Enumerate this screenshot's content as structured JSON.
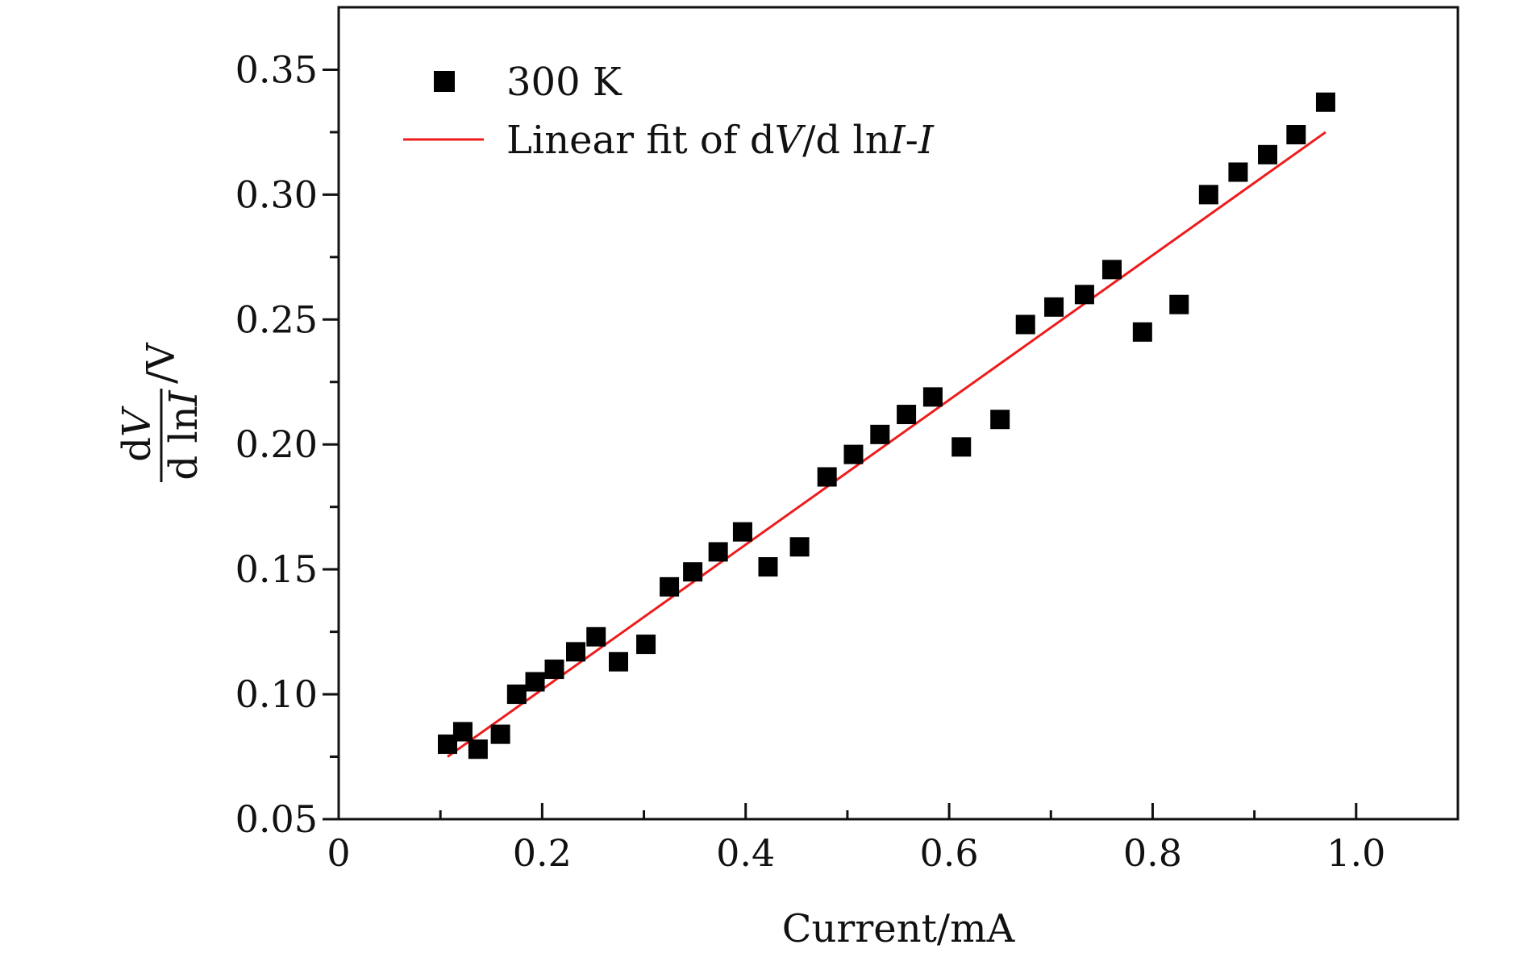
{
  "chart_data": {
    "type": "scatter",
    "xlabel": "Current/mA",
    "ylabel": {
      "numerator_prefix": "d",
      "numerator_var": "V",
      "denominator_prefix": "d ln",
      "denominator_var": "I",
      "unit": "/V"
    },
    "xlim": [
      0,
      1.1
    ],
    "ylim": [
      0.05,
      0.375
    ],
    "x_ticks": [
      0,
      0.2,
      0.4,
      0.6,
      0.8,
      1.0
    ],
    "x_tick_labels": [
      "0",
      "0.2",
      "0.4",
      "0.6",
      "0.8",
      "1.0"
    ],
    "x_minor_ticks": [
      0.1,
      0.3,
      0.5,
      0.7,
      0.9
    ],
    "y_ticks": [
      0.05,
      0.1,
      0.15,
      0.2,
      0.25,
      0.3,
      0.35
    ],
    "y_tick_labels": [
      "0.05",
      "0.10",
      "0.15",
      "0.20",
      "0.25",
      "0.30",
      "0.35"
    ],
    "y_minor_ticks": [
      0.075,
      0.125,
      0.175,
      0.225,
      0.275,
      0.325
    ],
    "legend_position": "top-left",
    "series": [
      {
        "name": "300 K",
        "kind": "scatter",
        "marker": "square",
        "color": "#000000",
        "points": [
          [
            0.107,
            0.08
          ],
          [
            0.122,
            0.085
          ],
          [
            0.137,
            0.078
          ],
          [
            0.159,
            0.084
          ],
          [
            0.175,
            0.1
          ],
          [
            0.193,
            0.105
          ],
          [
            0.212,
            0.11
          ],
          [
            0.233,
            0.117
          ],
          [
            0.253,
            0.123
          ],
          [
            0.275,
            0.113
          ],
          [
            0.302,
            0.12
          ],
          [
            0.325,
            0.143
          ],
          [
            0.348,
            0.149
          ],
          [
            0.373,
            0.157
          ],
          [
            0.397,
            0.165
          ],
          [
            0.422,
            0.151
          ],
          [
            0.453,
            0.159
          ],
          [
            0.48,
            0.187
          ],
          [
            0.506,
            0.196
          ],
          [
            0.532,
            0.204
          ],
          [
            0.558,
            0.212
          ],
          [
            0.584,
            0.219
          ],
          [
            0.612,
            0.199
          ],
          [
            0.65,
            0.21
          ],
          [
            0.675,
            0.248
          ],
          [
            0.703,
            0.255
          ],
          [
            0.733,
            0.26
          ],
          [
            0.76,
            0.27
          ],
          [
            0.79,
            0.245
          ],
          [
            0.826,
            0.256
          ],
          [
            0.855,
            0.3
          ],
          [
            0.884,
            0.309
          ],
          [
            0.913,
            0.316
          ],
          [
            0.941,
            0.324
          ],
          [
            0.97,
            0.337
          ]
        ]
      },
      {
        "name_prefix": "Linear fit of d",
        "name_v": "V",
        "name_mid": "/d ln",
        "name_i1": "I",
        "name_dash": "-",
        "name_i2": "I",
        "kind": "line",
        "color": "#ee1c1c",
        "x": [
          0.107,
          0.97
        ],
        "y": [
          0.075,
          0.325
        ]
      }
    ]
  }
}
